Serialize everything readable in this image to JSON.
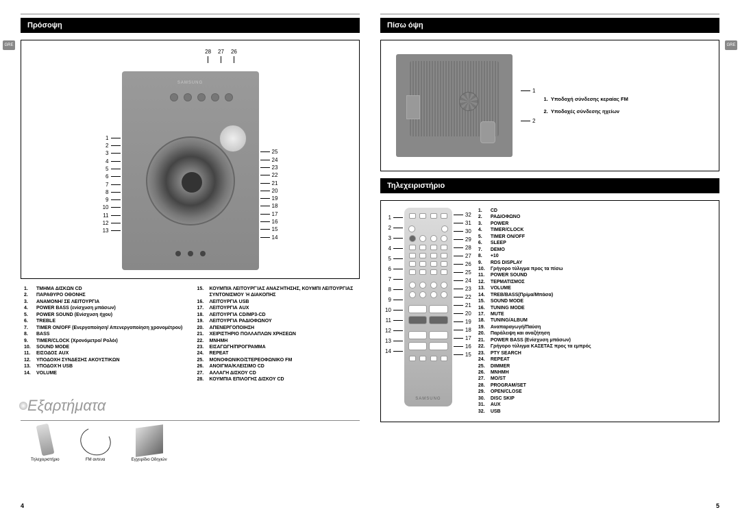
{
  "pageLeftNum": "4",
  "pageRightNum": "5",
  "greTab": "GRE",
  "front": {
    "title": "Πρόσοψη",
    "topCallouts": [
      "28",
      "27",
      "26"
    ],
    "leftCallouts": [
      "1",
      "2",
      "3",
      "4",
      "5",
      "6",
      "7",
      "8",
      "9",
      "10",
      "11",
      "12",
      "13"
    ],
    "rightCallouts": [
      "25",
      "24",
      "23",
      "22",
      "21",
      "20",
      "19",
      "18",
      "17",
      "16",
      "15",
      "14"
    ],
    "brand": "SAMSUNG",
    "legendCol1": [
      {
        "n": "1.",
        "t": "ΤΜΗΜΑ ΔΙΣΚΩΝ CD"
      },
      {
        "n": "2.",
        "t": "ΠΑΡΑΘΥΡΟ ΟΘΟΝΗΣ"
      },
      {
        "n": "3.",
        "t": "ΑΝΑΜΟΝΗ/ ΣΕ ΛΕΙΤΟΥΡΓΙΑ"
      },
      {
        "n": "4.",
        "t": "POWER BASS (ενίσχυση μπάσων)"
      },
      {
        "n": "5.",
        "t": "POWER SOUND (Ενίσχυση ήχου)"
      },
      {
        "n": "6.",
        "t": "TREBLE"
      },
      {
        "n": "7.",
        "t": "TIMER ON/OFF (Ενεργοποίηση/ Απενεργοποίηση χρονομέτρου)"
      },
      {
        "n": "8.",
        "t": "BASS"
      },
      {
        "n": "9.",
        "t": "TIMER/CLOCK (Χρονόμετρο/ Ρολόι)"
      },
      {
        "n": "10.",
        "t": "SOUND MODE"
      },
      {
        "n": "11.",
        "t": "ΕΙΣΟΔΟΣ AUX"
      },
      {
        "n": "12.",
        "t": "ΥΠΟΔΟΧΗ ΣΥΝΔΕΣΗΣ ΑΚΟΥΣΤΙΚΩΝ"
      },
      {
        "n": "13.",
        "t": "ΥΠΟΔΟΧΉ USB"
      },
      {
        "n": "14.",
        "t": "VOLUME"
      }
    ],
    "legendCol2": [
      {
        "n": "15.",
        "t": "ΚΟΥΜΠΙΆ ΛΕΙΤΟΥΡΓΊΑΣ ΑΝΑΖΉΤΗΣΗΣ, ΚΟΥΜΠΙ ΛΕΙΤΟΥΡΓΙΑΣ ΣΥΝΤΟΝΙΣΜΟΥ Ή ΔΙΑΚΟΠΗΣ"
      },
      {
        "n": "16.",
        "t": "ΛΕΙΤΟΥΡΓΙΑ  USB"
      },
      {
        "n": "17.",
        "t": "ΛΕΙΤΟΥΡΓΙΑ AUX"
      },
      {
        "n": "18.",
        "t": "ΛΕΙΤΟΥΡΓΙΑ CD/MP3-CD"
      },
      {
        "n": "19.",
        "t": "ΛΕΙΤΟΥΡΓΙΑ ΡΑΔΙΟΦΩΝΟΥ"
      },
      {
        "n": "20.",
        "t": "ΑΠΕΝΕΡΓΟΠΟΙΗΣΗ"
      },
      {
        "n": "21.",
        "t": "ΧΕΙΡΙΣΤΗΡΙΟ ΠΟΛΛΑΠΛΩΝ ΧΡΗΣΕΩΝ"
      },
      {
        "n": "22.",
        "t": "ΜΝΗΜΗ"
      },
      {
        "n": "23.",
        "t": "ΕΙΣΑΓΩΓΗ/ΠΡΟΓΡΑΜΜΑ"
      },
      {
        "n": "24.",
        "t": "REPEAT"
      },
      {
        "n": "25.",
        "t": "ΜΟΝOΦΩΝΙΚΟ/ΣΤΕΡΕΟΦΩΝΙΚΟ FM"
      },
      {
        "n": "26.",
        "t": "ΑΝΟΙΓΜΑ/ΚΛΕΙΣΙΜΟ CD"
      },
      {
        "n": "27.",
        "t": "ΑΛΛΑΓΗ ΔΙΣΚΟΥ CD"
      },
      {
        "n": "28.",
        "t": "ΚΟΥΜΠΙΑ ΕΠΙΛΟΓΗΣ ΔΙΣΚΟΥ CD"
      }
    ]
  },
  "accessories": {
    "title": "Εξαρτήματα",
    "items": [
      "Τηλεχειριστήριο",
      "FM αντενα",
      "Εγχειρίδιο Οδηγιών"
    ]
  },
  "rear": {
    "title": "Πίσω όψη",
    "callouts": [
      "1",
      "2"
    ],
    "legend": [
      {
        "n": "1.",
        "t": "Υποδοχή σύνδεσης κεραίας FM"
      },
      {
        "n": "2.",
        "t": "Υποδοχές σύνδεσης ηχείων"
      }
    ]
  },
  "remote": {
    "title": "Τηλεχειριστήριο",
    "brand": "SAMSUNG",
    "leftCallouts": [
      "1",
      "2",
      "3",
      "4",
      "5",
      "6",
      "7",
      "8",
      "9",
      "10",
      "11",
      "12",
      "13",
      "14"
    ],
    "rightCallouts": [
      "32",
      "31",
      "30",
      "29",
      "28",
      "27",
      "26",
      "25",
      "24",
      "23",
      "22",
      "21",
      "20",
      "19",
      "18",
      "17",
      "16",
      "15"
    ],
    "legend": [
      {
        "n": "1.",
        "t": "CD"
      },
      {
        "n": "2.",
        "t": "ΡΑΔΙΟΦΩΝΟ"
      },
      {
        "n": "3.",
        "t": "POWER"
      },
      {
        "n": "4.",
        "t": "TIMER/CLOCK"
      },
      {
        "n": "5.",
        "t": "TIMER ON/OFF"
      },
      {
        "n": "6.",
        "t": "SLEEP"
      },
      {
        "n": "7.",
        "t": "DEMO"
      },
      {
        "n": "8.",
        "t": "+10"
      },
      {
        "n": "9.",
        "t": "RDS DISPLAY"
      },
      {
        "n": "10.",
        "t": "Γρήγορο τύλιγμα προς τα πίσω",
        "light": true
      },
      {
        "n": "11.",
        "t": "POWER SOUND"
      },
      {
        "n": "12.",
        "t": "ΤΕΡΜΑΤΙΣΜΟΣ"
      },
      {
        "n": "13.",
        "t": "VOLUME"
      },
      {
        "n": "14.",
        "t": "TREB/BASS(Πρίμα/Μπάσα)"
      },
      {
        "n": "15.",
        "t": "SOUND MODE"
      },
      {
        "n": "16.",
        "t": "TUNING MODE"
      },
      {
        "n": "17.",
        "t": "MUTE"
      },
      {
        "n": "18.",
        "t": "TUNING/ALBUM"
      },
      {
        "n": "19.",
        "t": "Αναπαραγωγή/Παύση",
        "light": true
      },
      {
        "n": "20.",
        "t": "Παράλειψη και αναζήτηση",
        "light": true
      },
      {
        "n": "21.",
        "t": "POWER BASS (Ενίσχυση μπάσων)"
      },
      {
        "n": "22.",
        "t": "Γρήγορο τύλιγμα ΚΑΣΕΤΑΣ προς τα εμπρός",
        "light": true
      },
      {
        "n": "23.",
        "t": "PTY SEARCH"
      },
      {
        "n": "24.",
        "t": "REPEAT"
      },
      {
        "n": "25.",
        "t": "DIMMER"
      },
      {
        "n": "26.",
        "t": "ΜΝΗΜΗ"
      },
      {
        "n": "27.",
        "t": "MO/ST"
      },
      {
        "n": "28.",
        "t": "PROGRAM/SET"
      },
      {
        "n": "29.",
        "t": "OPEN/CLOSE"
      },
      {
        "n": "30.",
        "t": "DISC SKIP"
      },
      {
        "n": "31.",
        "t": "AUX"
      },
      {
        "n": "32.",
        "t": "USB"
      }
    ]
  }
}
